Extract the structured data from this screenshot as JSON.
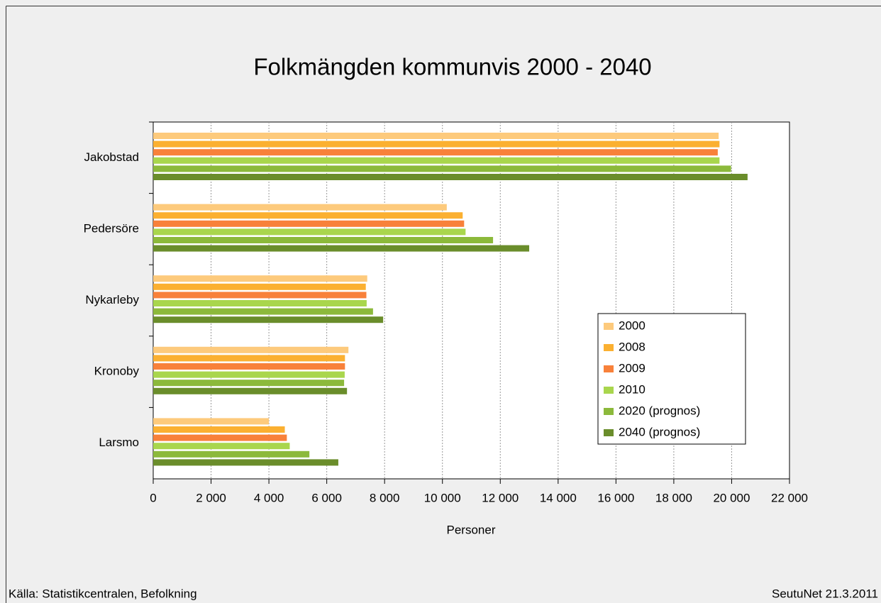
{
  "chart_data": {
    "type": "hbar",
    "title": "Folkmängden kommunvis 2000 - 2040",
    "xlabel": "Personer",
    "source": "Källa: Statistikcentralen, Befolkning",
    "credit": "SeutuNet 21.3.2011",
    "categories": [
      "Jakobstad",
      "Pedersöre",
      "Nykarleby",
      "Kronoby",
      "Larsmo"
    ],
    "series": [
      {
        "name": "2000",
        "color": "#fdca7c",
        "values": [
          19550,
          10150,
          7400,
          6750,
          4000
        ]
      },
      {
        "name": "2008",
        "color": "#fbb031",
        "values": [
          19580,
          10700,
          7350,
          6630,
          4550
        ]
      },
      {
        "name": "2009",
        "color": "#f8813a",
        "values": [
          19520,
          10750,
          7370,
          6630,
          4620
        ]
      },
      {
        "name": "2010",
        "color": "#a9d64d",
        "values": [
          19580,
          10800,
          7380,
          6620,
          4720
        ]
      },
      {
        "name": "2020 (prognos)",
        "color": "#8cb93b",
        "values": [
          19980,
          11750,
          7600,
          6600,
          5400
        ]
      },
      {
        "name": "2040 (prognos)",
        "color": "#6a8d2b",
        "values": [
          20550,
          13000,
          7950,
          6700,
          6400
        ]
      }
    ],
    "xlim": [
      0,
      22000
    ],
    "xticks": [
      0,
      {
        "value": 2000,
        "label": "2 000"
      },
      {
        "value": 4000,
        "label": "4 000"
      },
      {
        "value": 6000,
        "label": "6 000"
      },
      {
        "value": 8000,
        "label": "8 000"
      },
      {
        "value": 10000,
        "label": "10 000"
      },
      {
        "value": 12000,
        "label": "12 000"
      },
      {
        "value": 14000,
        "label": "14 000"
      },
      {
        "value": 16000,
        "label": "16 000"
      },
      {
        "value": 18000,
        "label": "18 000"
      },
      {
        "value": 20000,
        "label": "20 000"
      },
      {
        "value": 22000,
        "label": "22 000"
      }
    ],
    "grid": true,
    "legend": "lower right"
  }
}
